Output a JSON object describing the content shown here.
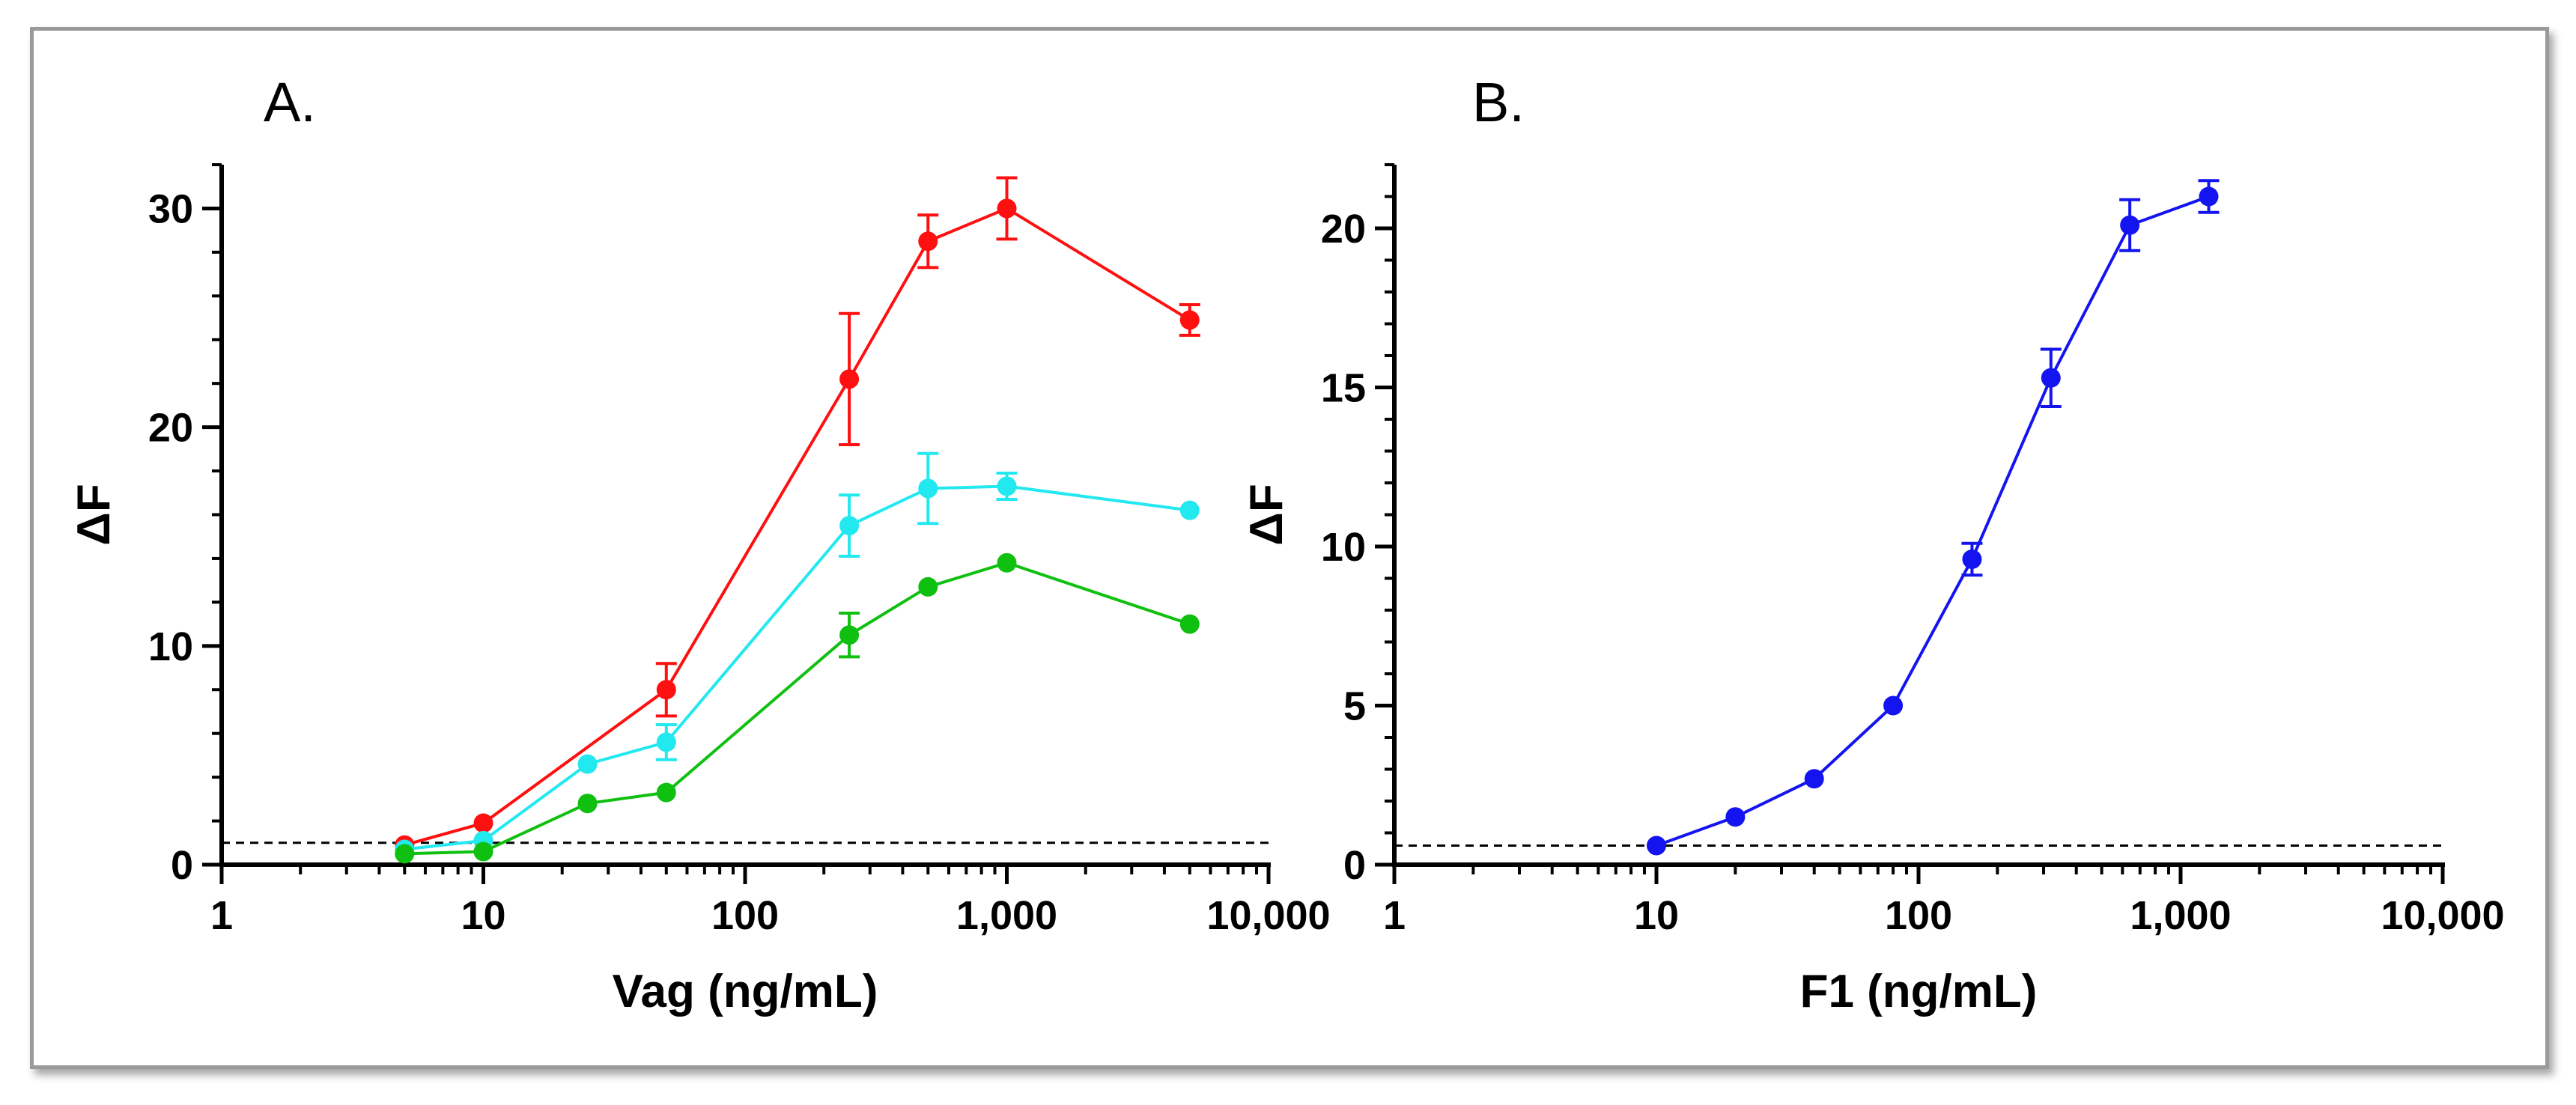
{
  "chart_data": [
    {
      "panel": "A.",
      "type": "line",
      "xscale": "log",
      "xlim": [
        1,
        10000
      ],
      "ylim": [
        0,
        32
      ],
      "xlabel": "Vag (ng/mL)",
      "ylabel": "ΔF",
      "xticks": [
        1,
        10,
        100,
        1000,
        10000
      ],
      "xtick_labels": [
        "1",
        "10",
        "100",
        "1,000",
        "10,000"
      ],
      "yticks": [
        0,
        10,
        20,
        30
      ],
      "ytick_labels": [
        "0",
        "10",
        "20",
        "30"
      ],
      "y_minor_step": 2,
      "baseline": 1.0,
      "series": [
        {
          "name": "red",
          "color": "#ff1010",
          "x": [
            5,
            10,
            25,
            50,
            250,
            500,
            1000,
            5000
          ],
          "y": [
            0.9,
            1.9,
            null,
            8.0,
            22.2,
            28.5,
            30.0,
            24.9
          ],
          "err": [
            0,
            0,
            0,
            1.2,
            3.0,
            1.2,
            1.4,
            0.7
          ]
        },
        {
          "name": "cyan",
          "color": "#22e8f0",
          "x": [
            5,
            10,
            25,
            50,
            250,
            500,
            1000,
            5000
          ],
          "y": [
            0.7,
            1.1,
            4.6,
            5.6,
            15.5,
            17.2,
            17.3,
            16.2
          ],
          "err": [
            0,
            0,
            0,
            0.8,
            1.4,
            1.6,
            0.6,
            0
          ]
        },
        {
          "name": "green",
          "color": "#10c010",
          "x": [
            5,
            10,
            25,
            50,
            250,
            500,
            1000,
            5000
          ],
          "y": [
            0.5,
            0.6,
            2.8,
            3.3,
            10.5,
            12.7,
            13.8,
            11.0
          ],
          "err": [
            0,
            0,
            0,
            0,
            1.0,
            0,
            0,
            0
          ]
        }
      ]
    },
    {
      "panel": "B.",
      "type": "line",
      "xscale": "log",
      "xlim": [
        1,
        10000
      ],
      "ylim": [
        0,
        22
      ],
      "xlabel": "F1 (ng/mL)",
      "ylabel": "ΔF",
      "xticks": [
        1,
        10,
        100,
        1000,
        10000
      ],
      "xtick_labels": [
        "1",
        "10",
        "100",
        "1,000",
        "10,000"
      ],
      "yticks": [
        0,
        5,
        10,
        15,
        20
      ],
      "ytick_labels": [
        "0",
        "5",
        "10",
        "15",
        "20"
      ],
      "y_minor_step": 1,
      "baseline": 0.6,
      "series": [
        {
          "name": "blue",
          "color": "#1414f0",
          "x": [
            10,
            20,
            40,
            80,
            160,
            320,
            640,
            1280
          ],
          "y": [
            0.6,
            1.5,
            2.7,
            5.0,
            9.6,
            15.3,
            20.1,
            21.0
          ],
          "err": [
            0,
            0,
            0,
            0,
            0.5,
            0.9,
            0.8,
            0.5
          ]
        }
      ]
    }
  ]
}
